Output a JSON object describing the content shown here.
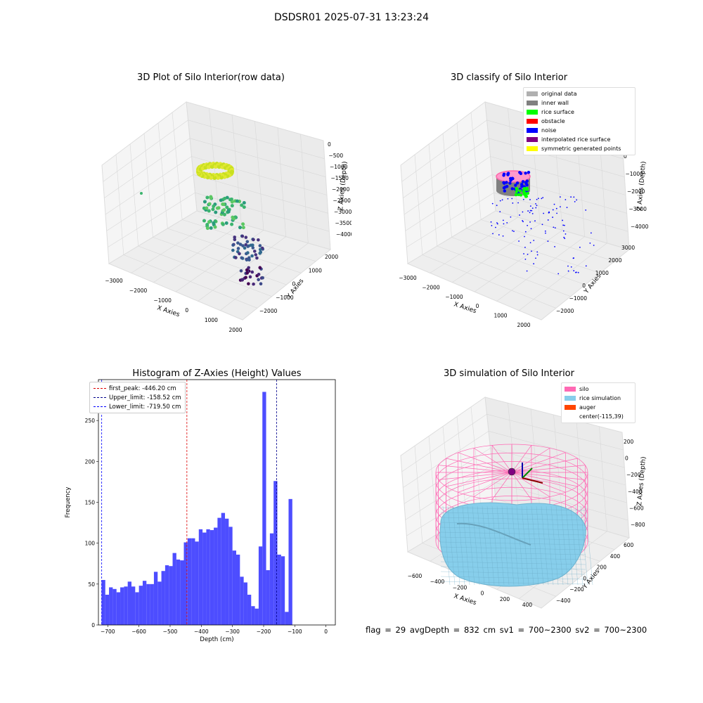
{
  "suptitle": "DSDSR01 2025-07-31 13:23:24",
  "status_line": "flag = 29  avgDepth = 832 cm  sv1 = 700~2300  sv2 = 700~2300",
  "panel_raw": {
    "title": "3D Plot of Silo Interior(row data)",
    "xlabel": "X Axies",
    "ylabel": "Y Axies",
    "zlabel": "Z Axies (Depth)",
    "xticks": [
      "−3000",
      "−2000",
      "−1000",
      "0",
      "1000",
      "2000"
    ],
    "yticks": [
      "−2000",
      "−1000",
      "0",
      "1000",
      "2000"
    ],
    "zticks": [
      "0",
      "−500",
      "−1000",
      "−1500",
      "−2000",
      "−2500",
      "−3000",
      "−3500",
      "−4000"
    ]
  },
  "panel_classify": {
    "title": "3D classify of Silo Interior",
    "xlabel": "X Axies",
    "ylabel": "Y Axies",
    "zlabel": "Z Axies (Depth)",
    "xticks": [
      "−3000",
      "−2000",
      "−1000",
      "0",
      "1000",
      "2000"
    ],
    "yticks": [
      "−2000",
      "−1000",
      "0",
      "1000",
      "2000",
      "3000"
    ],
    "zticks": [
      "0",
      "−1000",
      "−2000",
      "−3000",
      "−4000"
    ],
    "legend": [
      {
        "label": "original data",
        "color": "#b0b0b0"
      },
      {
        "label": "inner wall",
        "color": "#808080"
      },
      {
        "label": "rice surface",
        "color": "#00ff00"
      },
      {
        "label": "obstacle",
        "color": "#ff0000"
      },
      {
        "label": "noise",
        "color": "#0000ff"
      },
      {
        "label": "interpolated rice surface",
        "color": "#800080"
      },
      {
        "label": "symmetric generated points",
        "color": "#ffff00"
      }
    ]
  },
  "panel_sim": {
    "title": "3D simulation of Silo Interior",
    "xlabel": "X Axies",
    "ylabel": "Y Axies",
    "zlabel": "Z Axies (Depth)",
    "xticks": [
      "−600",
      "−400",
      "−200",
      "0",
      "200",
      "400"
    ],
    "yticks": [
      "−400",
      "−200",
      "0",
      "200",
      "400",
      "600"
    ],
    "zticks": [
      "200",
      "0",
      "−200",
      "−400",
      "−600",
      "−800"
    ],
    "legend": [
      {
        "label": "silo",
        "color": "#ff69b4"
      },
      {
        "label": "rice simulation",
        "color": "#87ceeb"
      },
      {
        "label": "auger",
        "color": "#ff4500"
      },
      {
        "label": "center(-115,39)",
        "color": ""
      }
    ]
  },
  "chart_data": {
    "type": "bar",
    "title": "Histogram of Z-Axies (Height) Values",
    "xlabel": "Depth (cm)",
    "ylabel": "Frequency",
    "xlim": [
      -730,
      30
    ],
    "ylim": [
      0,
      300
    ],
    "xticks": [
      -700,
      -600,
      -500,
      -400,
      -300,
      -200,
      -100,
      0
    ],
    "yticks": [
      0,
      50,
      100,
      150,
      200,
      250
    ],
    "bin_start": -720,
    "bin_width": 12,
    "bar_color": "#4d4dff",
    "values": [
      55,
      37,
      46,
      44,
      40,
      46,
      47,
      53,
      47,
      40,
      48,
      54,
      50,
      50,
      65,
      53,
      66,
      73,
      72,
      88,
      80,
      79,
      101,
      106,
      106,
      102,
      117,
      113,
      117,
      116,
      119,
      131,
      137,
      130,
      120,
      91,
      86,
      59,
      52,
      37,
      23,
      20,
      96,
      285,
      67,
      112,
      176,
      86,
      84,
      16,
      154
    ],
    "vlines": [
      {
        "label": "first_peak: -446.20 cm",
        "x": -446.2,
        "color": "#dd0000"
      },
      {
        "label": "Upper_limit: -158.52 cm",
        "x": -158.52,
        "color": "#00008b"
      },
      {
        "label": "Lower_limit: -719.50 cm",
        "x": -719.5,
        "color": "#0000ff"
      }
    ],
    "legend_position": "upper-left"
  }
}
